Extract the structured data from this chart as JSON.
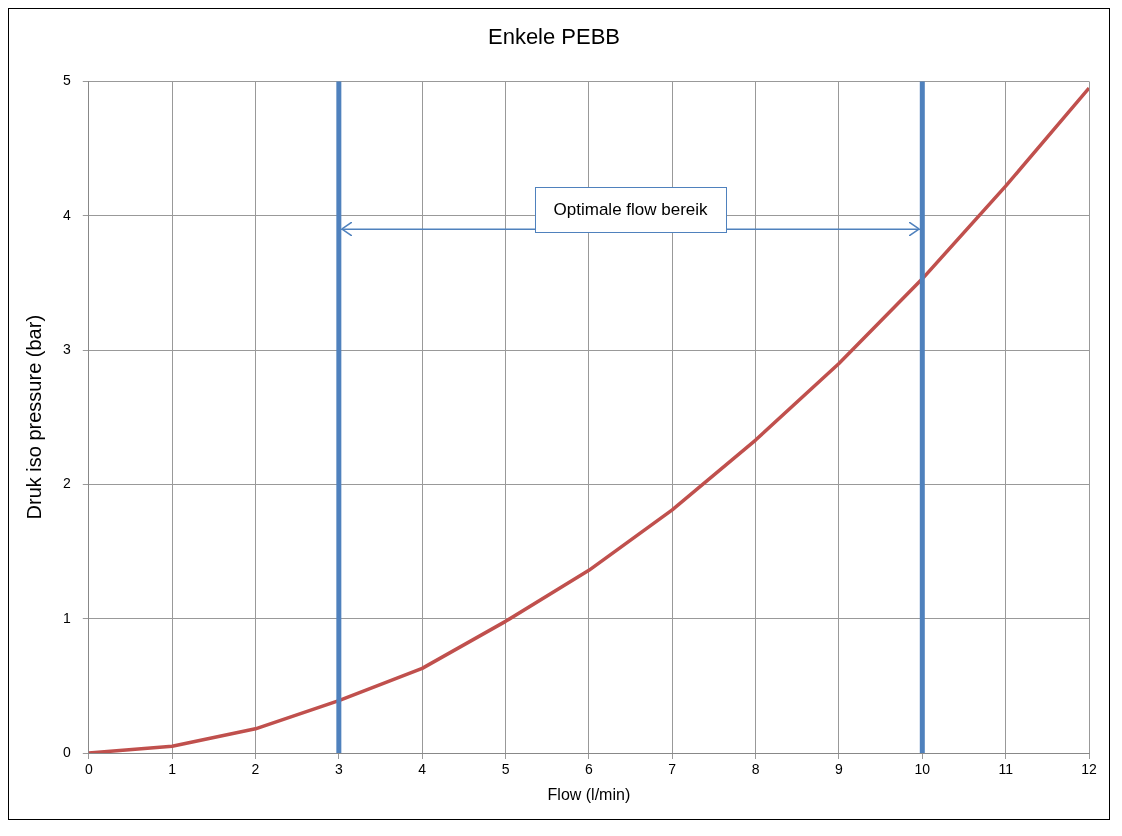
{
  "chart_data": {
    "type": "line",
    "title": "Enkele PEBB",
    "xlabel": "Flow (l/min)",
    "ylabel": "Druk iso pressure (bar)",
    "x": [
      0,
      1,
      2,
      3,
      4,
      5,
      6,
      7,
      8,
      9,
      10,
      11,
      12
    ],
    "series": [
      {
        "color": "#c0504d",
        "values": [
          0,
          0.05,
          0.18,
          0.39,
          0.63,
          0.98,
          1.36,
          1.81,
          2.33,
          2.9,
          3.53,
          4.22,
          4.95
        ]
      },
      {
        "type": "line",
        "color": "#4f81bd",
        "x": [
          3,
          10
        ],
        "values": [
          3.9,
          3.9
        ]
      }
    ],
    "xlim": [
      0,
      12
    ],
    "xticks": [
      0,
      1,
      2,
      3,
      4,
      5,
      6,
      7,
      8,
      9,
      10,
      11,
      12
    ],
    "ylim": [
      0,
      5
    ],
    "yticks": [
      0,
      1,
      2,
      3,
      4,
      5
    ],
    "grid": true,
    "legend": false,
    "marker": "none",
    "line_style": "solid",
    "ref_lines": [
      {
        "axis": "x",
        "value": 3,
        "color": "#4f81bd"
      },
      {
        "axis": "x",
        "value": 10,
        "color": "#4f81bd"
      }
    ],
    "annotations": [
      "Optimale flow bereik"
    ]
  }
}
